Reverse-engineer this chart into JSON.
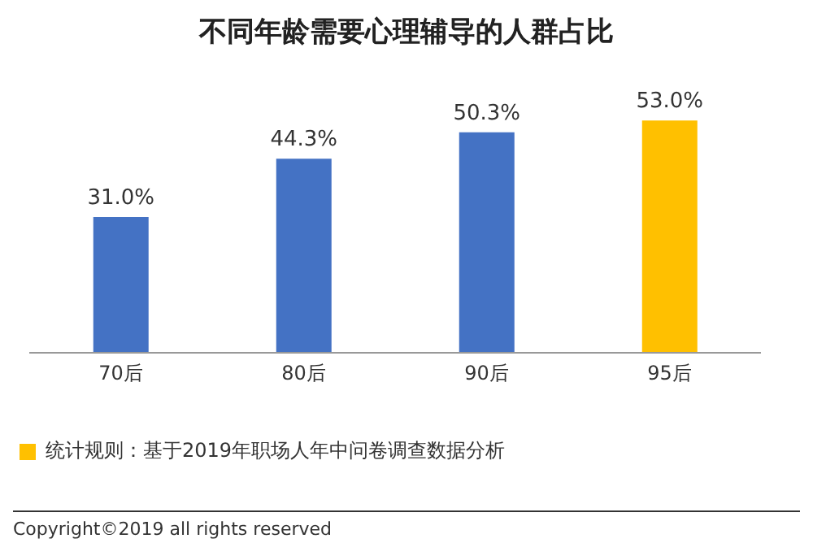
{
  "chart_data": {
    "type": "bar",
    "title": "不同年龄需要心理辅导的人群占比",
    "categories": [
      "70后",
      "80后",
      "90后",
      "95后"
    ],
    "values": [
      31.0,
      44.3,
      50.3,
      53.0
    ],
    "value_labels": [
      "31.0%",
      "44.3%",
      "50.3%",
      "53.0%"
    ],
    "colors": [
      "#4472c4",
      "#4472c4",
      "#4472c4",
      "#ffc000"
    ],
    "grid": false,
    "annotations": [
      "统计规则：基于2019年职场人年中问卷调查数据分析",
      "Copyright©2019 all rights reserved"
    ]
  }
}
